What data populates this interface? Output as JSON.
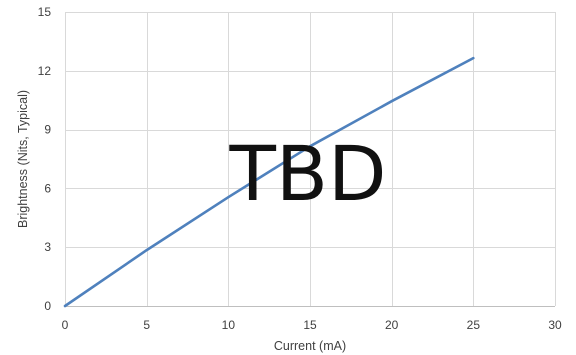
{
  "chart_data": {
    "type": "line",
    "title": "",
    "xlabel": "Current (mA)",
    "ylabel": "Brightness (Nits, Typical)",
    "xlim": [
      0,
      30
    ],
    "ylim": [
      0,
      15
    ],
    "x_ticks": [
      0,
      5,
      10,
      15,
      20,
      25,
      30
    ],
    "y_ticks": [
      0,
      3,
      6,
      9,
      12,
      15
    ],
    "grid": true,
    "legend": "none",
    "annotations": [
      "TBD"
    ],
    "series": [
      {
        "color": "#4f81bd",
        "x": [
          0,
          5,
          10,
          15,
          20,
          25
        ],
        "y": [
          0,
          2.85,
          5.55,
          8.15,
          10.45,
          12.65
        ]
      }
    ]
  }
}
